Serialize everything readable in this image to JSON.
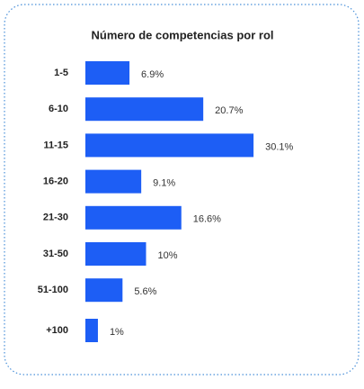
{
  "chart_data": {
    "type": "bar",
    "orientation": "horizontal",
    "title": "Número de competencias por rol",
    "categories": [
      "1-5",
      "6-10",
      "11-15",
      "16-20",
      "21-30",
      "31-50",
      "51-100",
      "+100"
    ],
    "values": [
      6.9,
      20.7,
      30.1,
      9.1,
      16.6,
      10,
      5.6,
      1
    ],
    "value_labels": [
      "6.9%",
      "20.7%",
      "30.1%",
      "9.1%",
      "16.6%",
      "10%",
      "5.6%",
      "1%"
    ],
    "color": "#1d5ef5"
  }
}
